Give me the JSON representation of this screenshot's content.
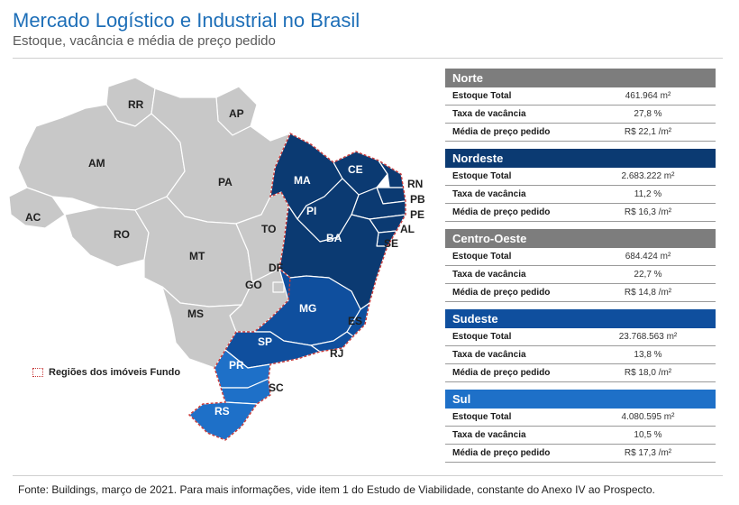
{
  "header": {
    "title": "Mercado Logístico e Industrial no Brasil",
    "subtitle": "Estoque, vacância e média de preço pedido"
  },
  "map": {
    "colors": {
      "other_states": "#c8c8c8",
      "nordeste": "#0b3a72",
      "sudeste": "#0f4f9e",
      "sul": "#1e70c8",
      "fund_border": "#c73a3a"
    },
    "states": {
      "RR": "RR",
      "AP": "AP",
      "AM": "AM",
      "PA": "PA",
      "AC": "AC",
      "RO": "RO",
      "TO": "TO",
      "MT": "MT",
      "DF": "DF",
      "GO": "GO",
      "MS": "MS",
      "MA": "MA",
      "CE": "CE",
      "RN": "RN",
      "PB": "PB",
      "PE": "PE",
      "PI": "PI",
      "AL": "AL",
      "BA": "BA",
      "SE": "SE",
      "MG": "MG",
      "ES": "ES",
      "SP": "SP",
      "RJ": "RJ",
      "PR": "PR",
      "SC": "SC",
      "RS": "RS"
    },
    "legend": "Regiões dos imóveis Fundo"
  },
  "regions": [
    {
      "name": "Norte",
      "color": "#7d7d7d",
      "rows": [
        {
          "label": "Estoque Total",
          "value": "461.964 m²"
        },
        {
          "label": "Taxa de vacância",
          "value": "27,8 %"
        },
        {
          "label": "Média de preço pedido",
          "value": "R$ 22,1 /m²"
        }
      ]
    },
    {
      "name": "Nordeste",
      "color": "#0b3a72",
      "rows": [
        {
          "label": "Estoque Total",
          "value": "2.683.222 m²"
        },
        {
          "label": "Taxa de vacância",
          "value": "11,2 %"
        },
        {
          "label": "Média de preço pedido",
          "value": "R$ 16,3 /m²"
        }
      ]
    },
    {
      "name": "Centro-Oeste",
      "color": "#7d7d7d",
      "rows": [
        {
          "label": "Estoque Total",
          "value": "684.424 m²"
        },
        {
          "label": "Taxa de vacância",
          "value": "22,7 %"
        },
        {
          "label": "Média de preço pedido",
          "value": "R$ 14,8 /m²"
        }
      ]
    },
    {
      "name": "Sudeste",
      "color": "#0f4f9e",
      "rows": [
        {
          "label": "Estoque Total",
          "value": "23.768.563 m²"
        },
        {
          "label": "Taxa de vacância",
          "value": "13,8 %"
        },
        {
          "label": "Média de preço pedido",
          "value": "R$ 18,0 /m²"
        }
      ]
    },
    {
      "name": "Sul",
      "color": "#1e70c8",
      "rows": [
        {
          "label": "Estoque Total",
          "value": "4.080.595 m²"
        },
        {
          "label": "Taxa de vacância",
          "value": "10,5 %"
        },
        {
          "label": "Média de preço pedido",
          "value": "R$ 17,3 /m²"
        }
      ]
    }
  ],
  "footer": "Fonte: Buildings, março de 2021. Para mais informações, vide item 1 do Estudo de Viabilidade, constante do Anexo IV ao Prospecto."
}
